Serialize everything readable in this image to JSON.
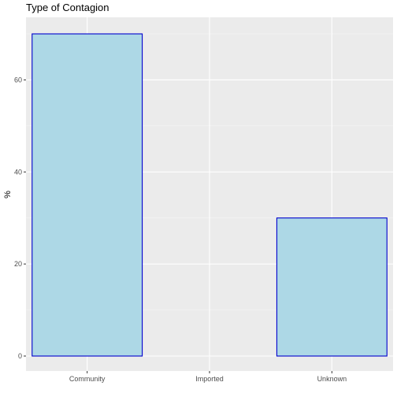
{
  "chart_data": {
    "type": "bar",
    "title": "Type of Contagion",
    "xlabel": "",
    "ylabel": "%",
    "categories": [
      "Community",
      "Imported",
      "Unknown"
    ],
    "values": [
      70,
      0,
      30
    ],
    "ylim": [
      0,
      73.5
    ],
    "yticks": [
      0,
      20,
      40,
      60
    ],
    "grid": true,
    "colors": {
      "panel_background": "#ebebeb",
      "grid_major": "#ffffff",
      "bar_fill": "#add8e6",
      "bar_outline": "#0000cd",
      "tick_text": "#4d4d4d"
    }
  }
}
